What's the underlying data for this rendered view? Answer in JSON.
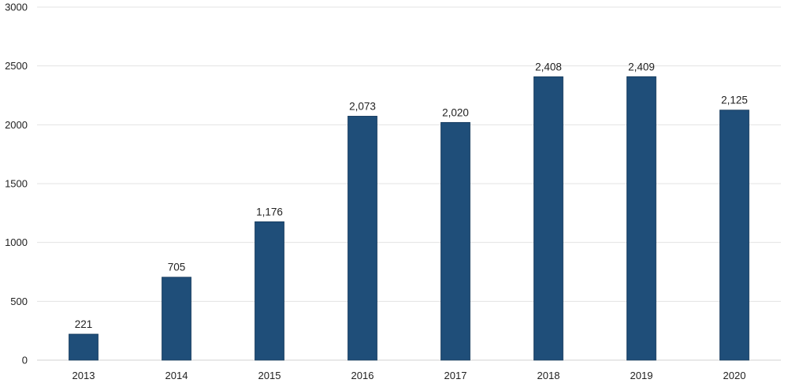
{
  "chart_data": {
    "type": "bar",
    "categories": [
      "2013",
      "2014",
      "2015",
      "2016",
      "2017",
      "2018",
      "2019",
      "2020"
    ],
    "values": [
      221,
      705,
      1176,
      2073,
      2020,
      2408,
      2409,
      2125
    ],
    "data_labels": [
      "221",
      "705",
      "1,176",
      "2,073",
      "2,020",
      "2,408",
      "2,409",
      "2,125"
    ],
    "y_ticks": [
      "0",
      "500",
      "1000",
      "1500",
      "2000",
      "2500",
      "3000"
    ],
    "y_tick_values": [
      0,
      500,
      1000,
      1500,
      2000,
      2500,
      3000
    ],
    "ylim": [
      0,
      3000
    ],
    "title": "",
    "xlabel": "",
    "ylabel": "",
    "grid": true,
    "legend": "none",
    "bar_color": "#1f4e79"
  }
}
